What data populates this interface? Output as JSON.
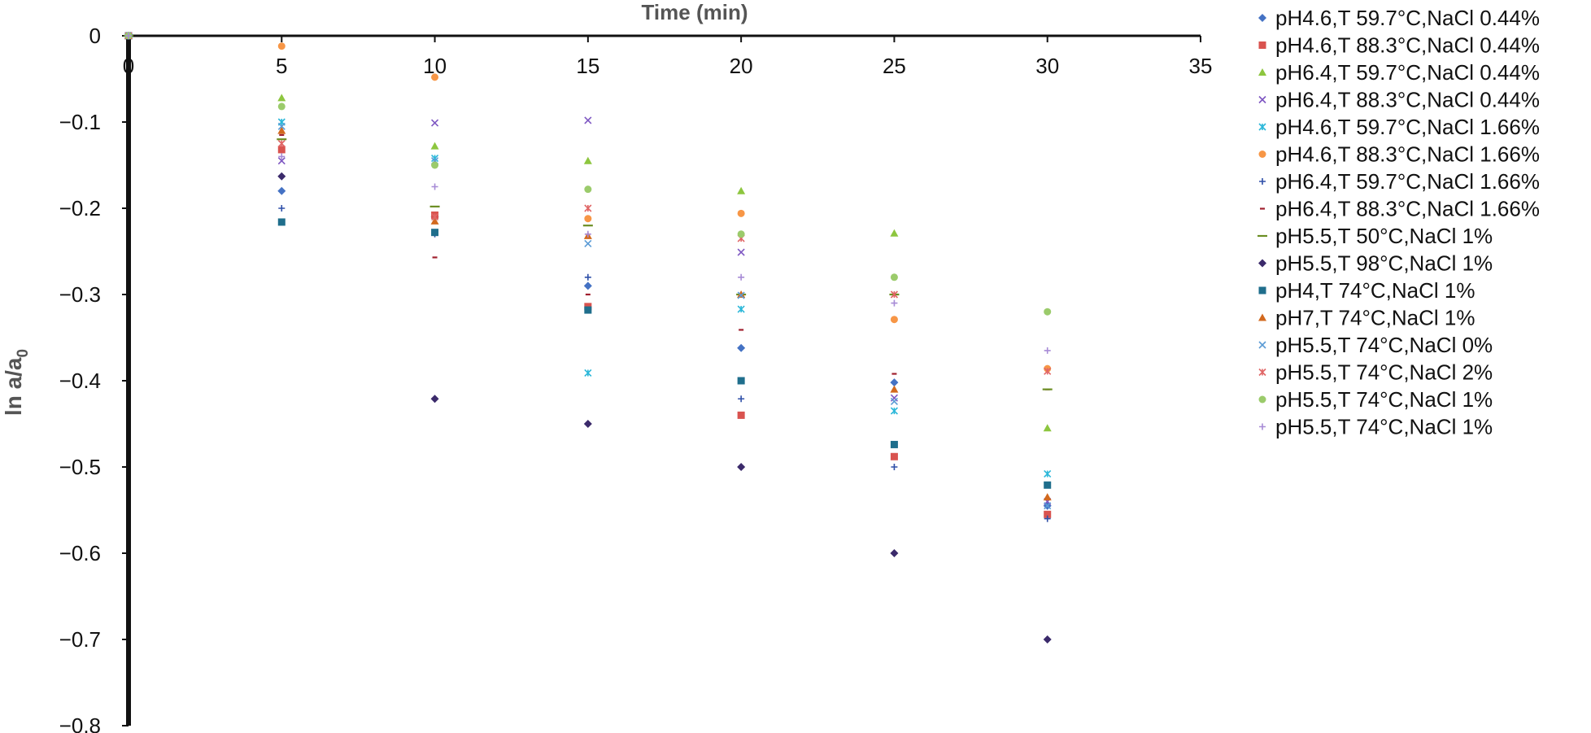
{
  "chart_data": {
    "type": "scatter",
    "xlabel": "Time (min)",
    "ylabel": "ln a/a",
    "ylabel_sub": "0",
    "xlim": [
      0,
      35
    ],
    "ylim": [
      -0.8,
      0
    ],
    "x_ticks": [
      "0",
      "5",
      "10",
      "15",
      "20",
      "25",
      "30",
      "35"
    ],
    "y_ticks": [
      "0",
      "−0.1",
      "−0.2",
      "−0.3",
      "−0.4",
      "−0.5",
      "−0.6",
      "−0.7",
      "−0.8"
    ],
    "grid": false,
    "legend_position": "right",
    "series": [
      {
        "name": "pH4.6,T 59.7°C,NaCl 0.44%",
        "color": "#4472C4",
        "marker": "diamond",
        "x": [
          0,
          5,
          10,
          15,
          20,
          25,
          30
        ],
        "y": [
          0,
          -0.18,
          -0.21,
          -0.29,
          -0.362,
          -0.402,
          -0.545
        ]
      },
      {
        "name": "pH4.6,T 88.3°C,NaCl 0.44%",
        "color": "#D9534F",
        "marker": "square",
        "x": [
          0,
          5,
          10,
          15,
          20,
          25,
          30
        ],
        "y": [
          0,
          -0.132,
          -0.208,
          -0.314,
          -0.44,
          -0.488,
          -0.555
        ]
      },
      {
        "name": "pH6.4,T 59.7°C,NaCl 0.44%",
        "color": "#8DC63F",
        "marker": "triangle",
        "x": [
          0,
          5,
          10,
          15,
          20,
          25,
          30
        ],
        "y": [
          0,
          -0.072,
          -0.128,
          -0.145,
          -0.18,
          -0.229,
          -0.455
        ]
      },
      {
        "name": "pH6.4,T 88.3°C,NaCl 0.44%",
        "color": "#7E57C2",
        "marker": "x",
        "x": [
          0,
          5,
          10,
          15,
          20,
          25,
          30
        ],
        "y": [
          0,
          -0.145,
          -0.101,
          -0.098,
          -0.251,
          -0.42,
          -0.54
        ]
      },
      {
        "name": "pH4.6,T 59.7°C,NaCl 1.66%",
        "color": "#2BB7D9",
        "marker": "asterisk",
        "x": [
          0,
          5,
          10,
          15,
          20,
          25,
          30
        ],
        "y": [
          0,
          -0.1,
          -0.142,
          -0.391,
          -0.317,
          -0.435,
          -0.508
        ]
      },
      {
        "name": "pH4.6,T 88.3°C,NaCl 1.66%",
        "color": "#F79646",
        "marker": "circle",
        "x": [
          0,
          5,
          10,
          15,
          20,
          25,
          30
        ],
        "y": [
          0,
          -0.012,
          -0.048,
          -0.212,
          -0.206,
          -0.329,
          -0.386
        ]
      },
      {
        "name": "pH6.4,T 59.7°C,NaCl 1.66%",
        "color": "#2E4FA8",
        "marker": "plus",
        "x": [
          0,
          5,
          10,
          15,
          20,
          25,
          30
        ],
        "y": [
          0,
          -0.2,
          -0.23,
          -0.28,
          -0.421,
          -0.5,
          -0.56
        ]
      },
      {
        "name": "pH6.4,T 88.3°C,NaCl 1.66%",
        "color": "#A0202E",
        "marker": "dash",
        "x": [
          0,
          5,
          10,
          15,
          20,
          25,
          30
        ],
        "y": [
          0,
          -0.115,
          -0.257,
          -0.3,
          -0.341,
          -0.392,
          -0.41
        ]
      },
      {
        "name": "pH5.5,T 50°C,NaCl 1%",
        "color": "#6B8E23",
        "marker": "longdash",
        "x": [
          0,
          5,
          10,
          15,
          20,
          25,
          30
        ],
        "y": [
          0,
          -0.12,
          -0.198,
          -0.22,
          -0.3,
          -0.3,
          -0.41
        ]
      },
      {
        "name": "pH5.5,T 98°C,NaCl 1%",
        "color": "#3B2A6B",
        "marker": "diamond",
        "x": [
          0,
          5,
          10,
          15,
          20,
          25,
          30
        ],
        "y": [
          0,
          -0.163,
          -0.421,
          -0.45,
          -0.5,
          -0.6,
          -0.7
        ]
      },
      {
        "name": "pH4,T 74°C,NaCl 1%",
        "color": "#1F6E8C",
        "marker": "square",
        "x": [
          0,
          5,
          10,
          15,
          20,
          25,
          30
        ],
        "y": [
          0,
          -0.216,
          -0.228,
          -0.318,
          -0.4,
          -0.474,
          -0.521
        ]
      },
      {
        "name": "pH7,T 74°C,NaCl 1%",
        "color": "#D2691E",
        "marker": "triangle",
        "x": [
          0,
          5,
          10,
          15,
          20,
          25,
          30
        ],
        "y": [
          0,
          -0.11,
          -0.215,
          -0.232,
          -0.3,
          -0.41,
          -0.535
        ]
      },
      {
        "name": "pH5.5,T 74°C,NaCl 0%",
        "color": "#5B9BD5",
        "marker": "x",
        "x": [
          0,
          5,
          10,
          15,
          20,
          25,
          30
        ],
        "y": [
          0,
          -0.105,
          -0.145,
          -0.241,
          -0.301,
          -0.424,
          -0.545
        ]
      },
      {
        "name": "pH5.5,T 74°C,NaCl 2%",
        "color": "#E06666",
        "marker": "asterisk",
        "x": [
          0,
          5,
          10,
          15,
          20,
          25,
          30
        ],
        "y": [
          0,
          -0.125,
          -0.21,
          -0.2,
          -0.235,
          -0.3,
          -0.389
        ]
      },
      {
        "name": "pH5.5,T 74°C,NaCl 1%",
        "color": "#9BCB6B",
        "marker": "circle",
        "x": [
          0,
          5,
          10,
          15,
          20,
          25,
          30
        ],
        "y": [
          0,
          -0.082,
          -0.15,
          -0.178,
          -0.23,
          -0.28,
          -0.32
        ]
      },
      {
        "name": "pH5.5,T 74°C,NaCl 1%",
        "color": "#A78BD6",
        "marker": "plus",
        "x": [
          0,
          5,
          10,
          15,
          20,
          25,
          30
        ],
        "y": [
          0,
          -0.14,
          -0.175,
          -0.23,
          -0.28,
          -0.31,
          -0.365
        ]
      }
    ]
  }
}
